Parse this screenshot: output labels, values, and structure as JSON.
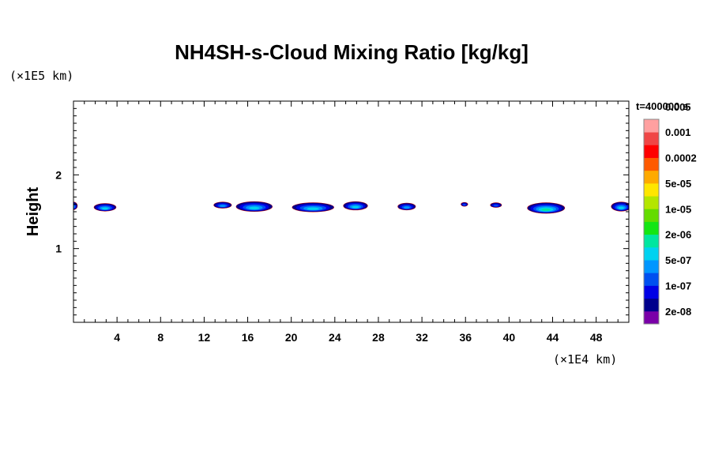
{
  "chart_data": {
    "type": "heatmap",
    "title": "NH4SH-s-Cloud Mixing Ratio [kg/kg]",
    "ylabel": "Height",
    "x_unit": "(×1E4 km)",
    "y_unit": "(×1E5 km)",
    "time_label": "t=400000 s",
    "xlim": [
      0,
      51
    ],
    "ylim": [
      0,
      3
    ],
    "x_ticks": [
      4,
      8,
      12,
      16,
      20,
      24,
      28,
      32,
      36,
      40,
      44,
      48
    ],
    "x_tick_labels": [
      "4",
      "8",
      "12",
      "16",
      "20",
      "24",
      "28",
      "32",
      "36",
      "40",
      "44",
      "48"
    ],
    "y_ticks": [
      1,
      2
    ],
    "y_tick_labels": [
      "1",
      "2"
    ],
    "colorbar": {
      "colors": [
        "#7a00a8",
        "#00008c",
        "#0000e6",
        "#0050f0",
        "#0096ff",
        "#00d2f0",
        "#00e6a0",
        "#14e614",
        "#64dc00",
        "#b4e600",
        "#ffe600",
        "#ffaa00",
        "#ff5a00",
        "#ff0000",
        "#f04646",
        "#ffa0a0"
      ],
      "labels": [
        "2e-08",
        "1e-07",
        "5e-07",
        "2e-06",
        "1e-05",
        "5e-05",
        "0.0002",
        "0.001",
        "0.005"
      ]
    },
    "cloud_blobs": [
      {
        "x": 0.0,
        "y": 1.58,
        "w": 0.7,
        "h": 0.1,
        "level": 4
      },
      {
        "x": 2.9,
        "y": 1.56,
        "w": 2.0,
        "h": 0.1,
        "level": 5
      },
      {
        "x": 13.7,
        "y": 1.59,
        "w": 1.6,
        "h": 0.08,
        "level": 4
      },
      {
        "x": 16.6,
        "y": 1.57,
        "w": 3.3,
        "h": 0.13,
        "level": 5
      },
      {
        "x": 22.0,
        "y": 1.56,
        "w": 3.8,
        "h": 0.12,
        "level": 5
      },
      {
        "x": 25.9,
        "y": 1.58,
        "w": 2.2,
        "h": 0.11,
        "level": 5
      },
      {
        "x": 30.6,
        "y": 1.57,
        "w": 1.6,
        "h": 0.09,
        "level": 4
      },
      {
        "x": 35.9,
        "y": 1.6,
        "w": 0.6,
        "h": 0.05,
        "level": 3
      },
      {
        "x": 38.8,
        "y": 1.59,
        "w": 1.0,
        "h": 0.06,
        "level": 3
      },
      {
        "x": 43.4,
        "y": 1.55,
        "w": 3.4,
        "h": 0.14,
        "level": 6
      },
      {
        "x": 50.3,
        "y": 1.57,
        "w": 1.8,
        "h": 0.12,
        "level": 5
      }
    ]
  }
}
